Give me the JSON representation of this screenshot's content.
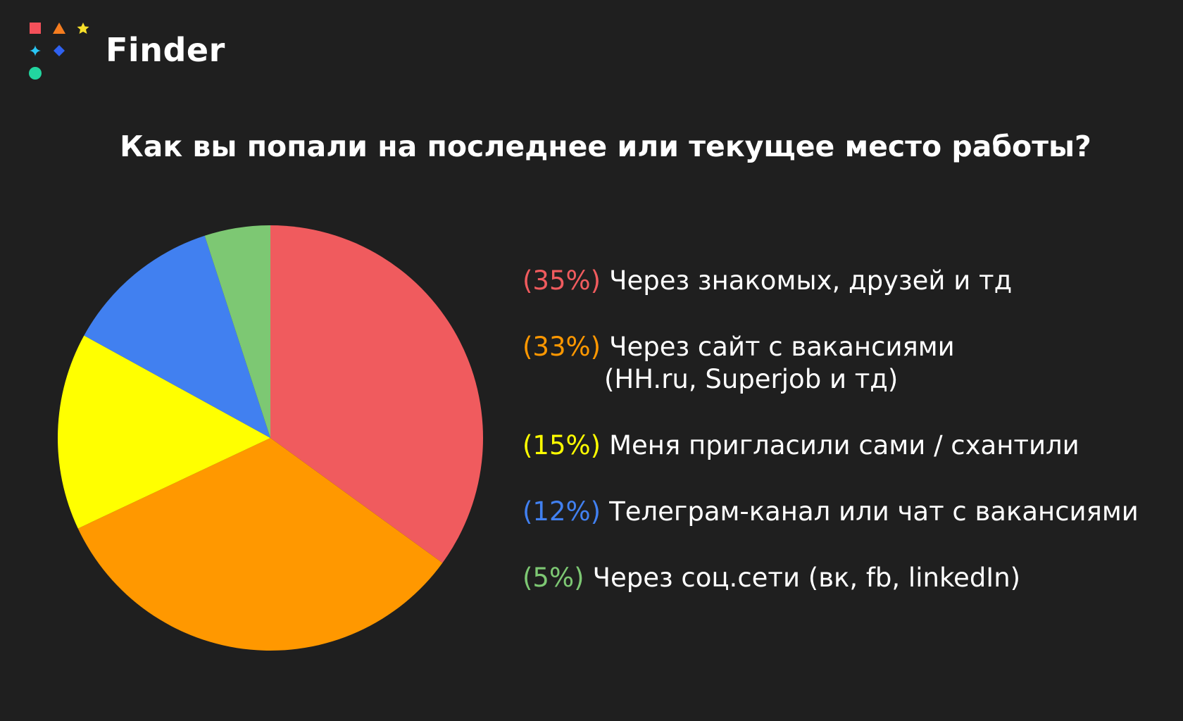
{
  "brand": {
    "name": "Finder",
    "marks": [
      {
        "shape": "square",
        "color": "#f4505a"
      },
      {
        "shape": "triangle",
        "color": "#f57c1f"
      },
      {
        "shape": "star",
        "color": "#f7e02a"
      },
      {
        "shape": "sparkle",
        "color": "#29c6f5"
      },
      {
        "shape": "diamond",
        "color": "#2f61f0"
      },
      {
        "shape": "circle",
        "color": "#22d6a0"
      }
    ]
  },
  "chart_data": {
    "type": "pie",
    "title": "Как вы попали на последнее или текущее место работы?",
    "slices": [
      {
        "percent_label": "(35%)",
        "label": "Через знакомых, друзей и тд",
        "label_line2": "",
        "value": 35,
        "color": "#f05b5e"
      },
      {
        "percent_label": "(33%)",
        "label": "Через сайт с вакансиями",
        "label_line2": "(HH.ru, Superjob и тд)",
        "value": 33,
        "color": "#ff9800"
      },
      {
        "percent_label": "(15%)",
        "label": "Меня пригласили сами / схантили",
        "label_line2": "",
        "value": 15,
        "color": "#ffff00"
      },
      {
        "percent_label": "(12%)",
        "label": "Телеграм-канал или чат с вакансиями",
        "label_line2": "",
        "value": 12,
        "color": "#4180f0"
      },
      {
        "percent_label": "(5%)",
        "label": "Через соц.сети (вк, fb, linkedIn)",
        "label_line2": "",
        "value": 5,
        "color": "#7dc873"
      }
    ],
    "legend_placement": "right"
  }
}
